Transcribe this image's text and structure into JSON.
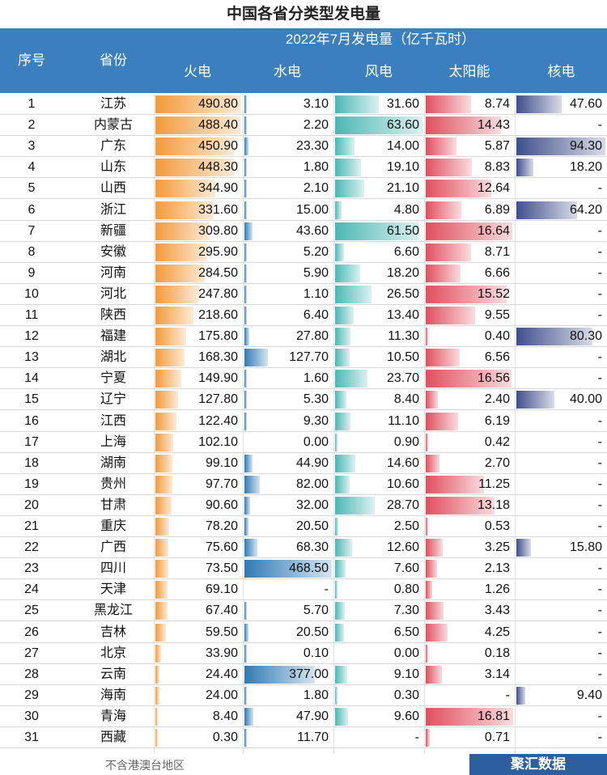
{
  "title": "中国各省分类型发电量",
  "header": {
    "period_unit": "2022年7月发电量（亿千瓦时）",
    "col_index": "序号",
    "col_province": "省份",
    "col_thermal": "火电",
    "col_hydro": "水电",
    "col_wind": "风电",
    "col_solar": "太阳能",
    "col_nuclear": "核电"
  },
  "colors": {
    "header_bg": "#3b7fbf",
    "thermal": "#f39a3a",
    "hydro": "#2f7bb5",
    "wind": "#4bb8b5",
    "solar": "#e0505e",
    "nuclear": "#3f4f8c"
  },
  "footer": {
    "note": "不含港澳台地区",
    "brand": "聚汇数据"
  },
  "chart_data": {
    "type": "table",
    "columns": [
      "序号",
      "省份",
      "火电",
      "水电",
      "风电",
      "太阳能",
      "核电"
    ],
    "rows": [
      {
        "idx": "1",
        "province": "江苏",
        "thermal": "490.80",
        "hydro": "3.10",
        "wind": "31.60",
        "solar": "8.74",
        "nuclear": "47.60"
      },
      {
        "idx": "2",
        "province": "内蒙古",
        "thermal": "488.40",
        "hydro": "2.20",
        "wind": "63.60",
        "solar": "14.43",
        "nuclear": "-"
      },
      {
        "idx": "3",
        "province": "广东",
        "thermal": "450.90",
        "hydro": "23.30",
        "wind": "14.00",
        "solar": "5.87",
        "nuclear": "94.30"
      },
      {
        "idx": "4",
        "province": "山东",
        "thermal": "448.30",
        "hydro": "1.80",
        "wind": "19.10",
        "solar": "8.83",
        "nuclear": "18.20"
      },
      {
        "idx": "5",
        "province": "山西",
        "thermal": "344.90",
        "hydro": "2.10",
        "wind": "21.10",
        "solar": "12.64",
        "nuclear": "-"
      },
      {
        "idx": "6",
        "province": "浙江",
        "thermal": "331.60",
        "hydro": "15.00",
        "wind": "4.80",
        "solar": "6.89",
        "nuclear": "64.20"
      },
      {
        "idx": "7",
        "province": "新疆",
        "thermal": "309.80",
        "hydro": "43.60",
        "wind": "61.50",
        "solar": "16.64",
        "nuclear": "-"
      },
      {
        "idx": "8",
        "province": "安徽",
        "thermal": "295.90",
        "hydro": "5.20",
        "wind": "6.60",
        "solar": "8.71",
        "nuclear": "-"
      },
      {
        "idx": "9",
        "province": "河南",
        "thermal": "284.50",
        "hydro": "5.90",
        "wind": "18.20",
        "solar": "6.66",
        "nuclear": "-"
      },
      {
        "idx": "10",
        "province": "河北",
        "thermal": "247.80",
        "hydro": "1.10",
        "wind": "26.50",
        "solar": "15.52",
        "nuclear": "-"
      },
      {
        "idx": "11",
        "province": "陕西",
        "thermal": "218.60",
        "hydro": "6.40",
        "wind": "13.40",
        "solar": "9.55",
        "nuclear": "-"
      },
      {
        "idx": "12",
        "province": "福建",
        "thermal": "175.80",
        "hydro": "27.80",
        "wind": "11.30",
        "solar": "0.40",
        "nuclear": "80.30"
      },
      {
        "idx": "13",
        "province": "湖北",
        "thermal": "168.30",
        "hydro": "127.70",
        "wind": "10.50",
        "solar": "6.56",
        "nuclear": "-"
      },
      {
        "idx": "14",
        "province": "宁夏",
        "thermal": "149.90",
        "hydro": "1.60",
        "wind": "23.70",
        "solar": "16.56",
        "nuclear": "-"
      },
      {
        "idx": "15",
        "province": "辽宁",
        "thermal": "127.80",
        "hydro": "5.30",
        "wind": "8.40",
        "solar": "2.40",
        "nuclear": "40.00"
      },
      {
        "idx": "16",
        "province": "江西",
        "thermal": "122.40",
        "hydro": "9.30",
        "wind": "11.10",
        "solar": "6.19",
        "nuclear": "-"
      },
      {
        "idx": "17",
        "province": "上海",
        "thermal": "102.10",
        "hydro": "0.00",
        "wind": "0.90",
        "solar": "0.42",
        "nuclear": "-"
      },
      {
        "idx": "18",
        "province": "湖南",
        "thermal": "99.10",
        "hydro": "44.90",
        "wind": "14.60",
        "solar": "2.70",
        "nuclear": "-"
      },
      {
        "idx": "19",
        "province": "贵州",
        "thermal": "97.70",
        "hydro": "82.00",
        "wind": "10.60",
        "solar": "11.25",
        "nuclear": "-"
      },
      {
        "idx": "20",
        "province": "甘肃",
        "thermal": "90.60",
        "hydro": "32.00",
        "wind": "28.70",
        "solar": "13.18",
        "nuclear": "-"
      },
      {
        "idx": "21",
        "province": "重庆",
        "thermal": "78.20",
        "hydro": "20.50",
        "wind": "2.50",
        "solar": "0.53",
        "nuclear": "-"
      },
      {
        "idx": "22",
        "province": "广西",
        "thermal": "75.60",
        "hydro": "68.30",
        "wind": "12.60",
        "solar": "3.25",
        "nuclear": "15.80"
      },
      {
        "idx": "23",
        "province": "四川",
        "thermal": "73.50",
        "hydro": "468.50",
        "wind": "7.60",
        "solar": "2.13",
        "nuclear": "-"
      },
      {
        "idx": "24",
        "province": "天津",
        "thermal": "69.10",
        "hydro": "-",
        "wind": "0.80",
        "solar": "1.26",
        "nuclear": "-"
      },
      {
        "idx": "25",
        "province": "黑龙江",
        "thermal": "67.40",
        "hydro": "5.70",
        "wind": "7.30",
        "solar": "3.43",
        "nuclear": "-"
      },
      {
        "idx": "26",
        "province": "吉林",
        "thermal": "59.50",
        "hydro": "20.50",
        "wind": "6.50",
        "solar": "4.25",
        "nuclear": "-"
      },
      {
        "idx": "27",
        "province": "北京",
        "thermal": "33.90",
        "hydro": "0.10",
        "wind": "0.00",
        "solar": "0.18",
        "nuclear": "-"
      },
      {
        "idx": "28",
        "province": "云南",
        "thermal": "24.40",
        "hydro": "377.00",
        "wind": "9.10",
        "solar": "3.14",
        "nuclear": "-"
      },
      {
        "idx": "29",
        "province": "海南",
        "thermal": "24.00",
        "hydro": "1.80",
        "wind": "0.30",
        "solar": "-",
        "nuclear": "9.40"
      },
      {
        "idx": "30",
        "province": "青海",
        "thermal": "8.40",
        "hydro": "47.90",
        "wind": "9.60",
        "solar": "16.81",
        "nuclear": "-"
      },
      {
        "idx": "31",
        "province": "西藏",
        "thermal": "0.30",
        "hydro": "11.70",
        "wind": "-",
        "solar": "0.71",
        "nuclear": "-"
      }
    ]
  }
}
